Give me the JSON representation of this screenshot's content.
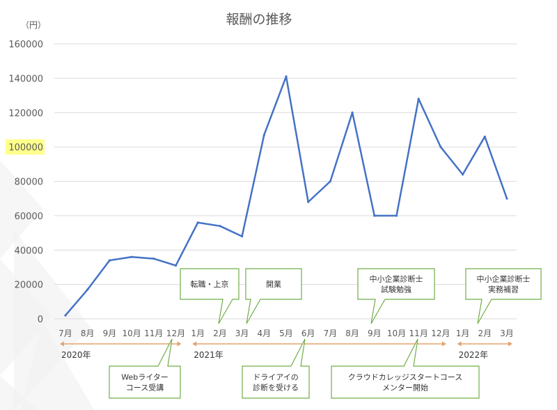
{
  "chart_data": {
    "type": "line",
    "title": "報酬の推移",
    "unit_label": "（円）",
    "categories": [
      "7月",
      "8月",
      "9月",
      "10月",
      "11月",
      "12月",
      "1月",
      "2月",
      "3月",
      "4月",
      "5月",
      "6月",
      "7月",
      "8月",
      "9月",
      "10月",
      "11月",
      "12月",
      "1月",
      "2月",
      "3月"
    ],
    "series": [
      {
        "values": [
          2000,
          17000,
          34000,
          36000,
          35000,
          31000,
          56000,
          54000,
          48000,
          107000,
          141000,
          68000,
          80000,
          120000,
          60000,
          60000,
          128000,
          100000,
          84000,
          106000,
          70000
        ]
      }
    ],
    "yticks": [
      "0",
      "20000",
      "40000",
      "60000",
      "80000",
      "100000",
      "120000",
      "140000",
      "160000"
    ],
    "ylim": [
      0,
      160000
    ],
    "grid": true,
    "highlighted_tick": "100000",
    "colors": {
      "series": "#4472c4",
      "callout_border": "#70ad47",
      "timeline": "#e3a46f",
      "highlight": "#ffff66"
    },
    "years": [
      {
        "label": "2020年",
        "start": 0,
        "end": 5
      },
      {
        "label": "2021年",
        "start": 6,
        "end": 17
      },
      {
        "label": "2022年",
        "start": 18,
        "end": 20
      }
    ],
    "callouts_above": [
      {
        "lines": [
          "転職・上京"
        ],
        "target_index": 7
      },
      {
        "lines": [
          "開業"
        ],
        "target_index": 8
      },
      {
        "lines": [
          "中小企業診断士",
          "試験勉強"
        ],
        "target_index": 14
      },
      {
        "lines": [
          "中小企業診断士",
          "実務補習"
        ],
        "target_index": 19
      }
    ],
    "callouts_below": [
      {
        "lines": [
          "Webライター",
          "コース受講"
        ],
        "target_index": 5
      },
      {
        "lines": [
          "ドライアイの",
          "診断を受ける"
        ],
        "target_index": 11
      },
      {
        "lines": [
          "クラウドカレッジスタートコース",
          "メンター開始"
        ],
        "target_index": 16
      }
    ]
  }
}
